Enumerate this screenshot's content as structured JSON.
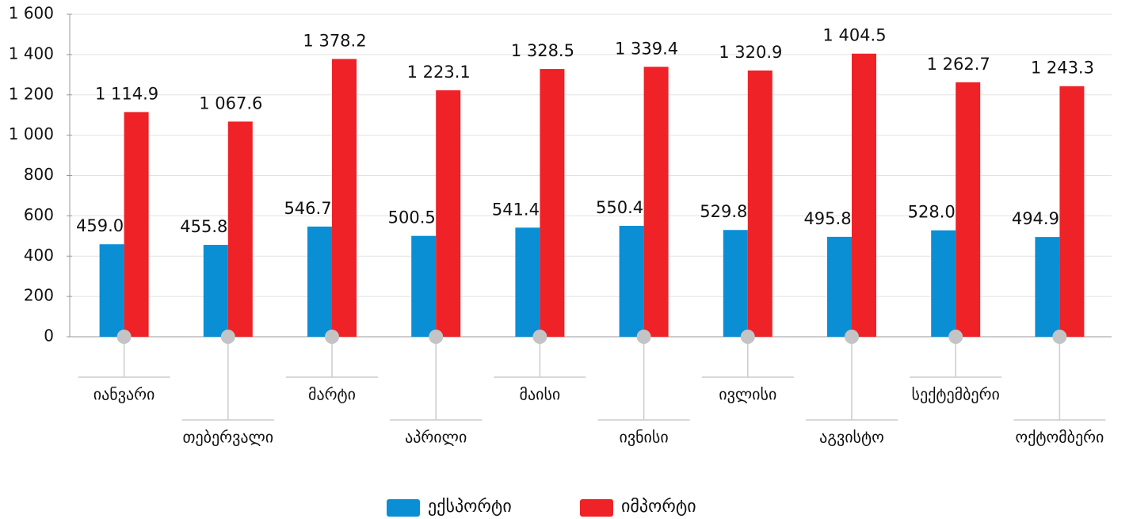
{
  "chart_data": {
    "type": "bar",
    "categories": [
      "იანვარი",
      "თებერვალი",
      "მარტი",
      "აპრილი",
      "მაისი",
      "ივნისი",
      "ივლისი",
      "აგვისტო",
      "სექტემბერი",
      "ოქტომბერი"
    ],
    "series": [
      {
        "name": "ექსპორტი",
        "color": "#0a8fd4",
        "values": [
          459.0,
          455.8,
          546.7,
          500.5,
          541.4,
          550.4,
          529.8,
          495.8,
          528.0,
          494.9
        ],
        "value_labels": [
          "459.0",
          "455.8",
          "546.7",
          "500.5",
          "541.4",
          "550.4",
          "529.8",
          "495.8",
          "528.0",
          "494.9"
        ]
      },
      {
        "name": "იმპორტი",
        "color": "#ee2227",
        "values": [
          1114.9,
          1067.6,
          1378.2,
          1223.1,
          1328.5,
          1339.4,
          1320.9,
          1404.5,
          1262.7,
          1243.3
        ],
        "value_labels": [
          "1 114.9",
          "1 067.6",
          "1 378.2",
          "1 223.1",
          "1 328.5",
          "1 339.4",
          "1 320.9",
          "1 404.5",
          "1 262.7",
          "1 243.3"
        ]
      }
    ],
    "ylim": [
      0,
      1600
    ],
    "yticks": [
      0,
      200,
      400,
      600,
      800,
      {
        "value": 1000,
        "label": "1 000"
      },
      {
        "value": 1200,
        "label": "1 200"
      },
      {
        "value": 1400,
        "label": "1 400"
      },
      {
        "value": 1600,
        "label": "1 600"
      }
    ],
    "grid": true
  }
}
